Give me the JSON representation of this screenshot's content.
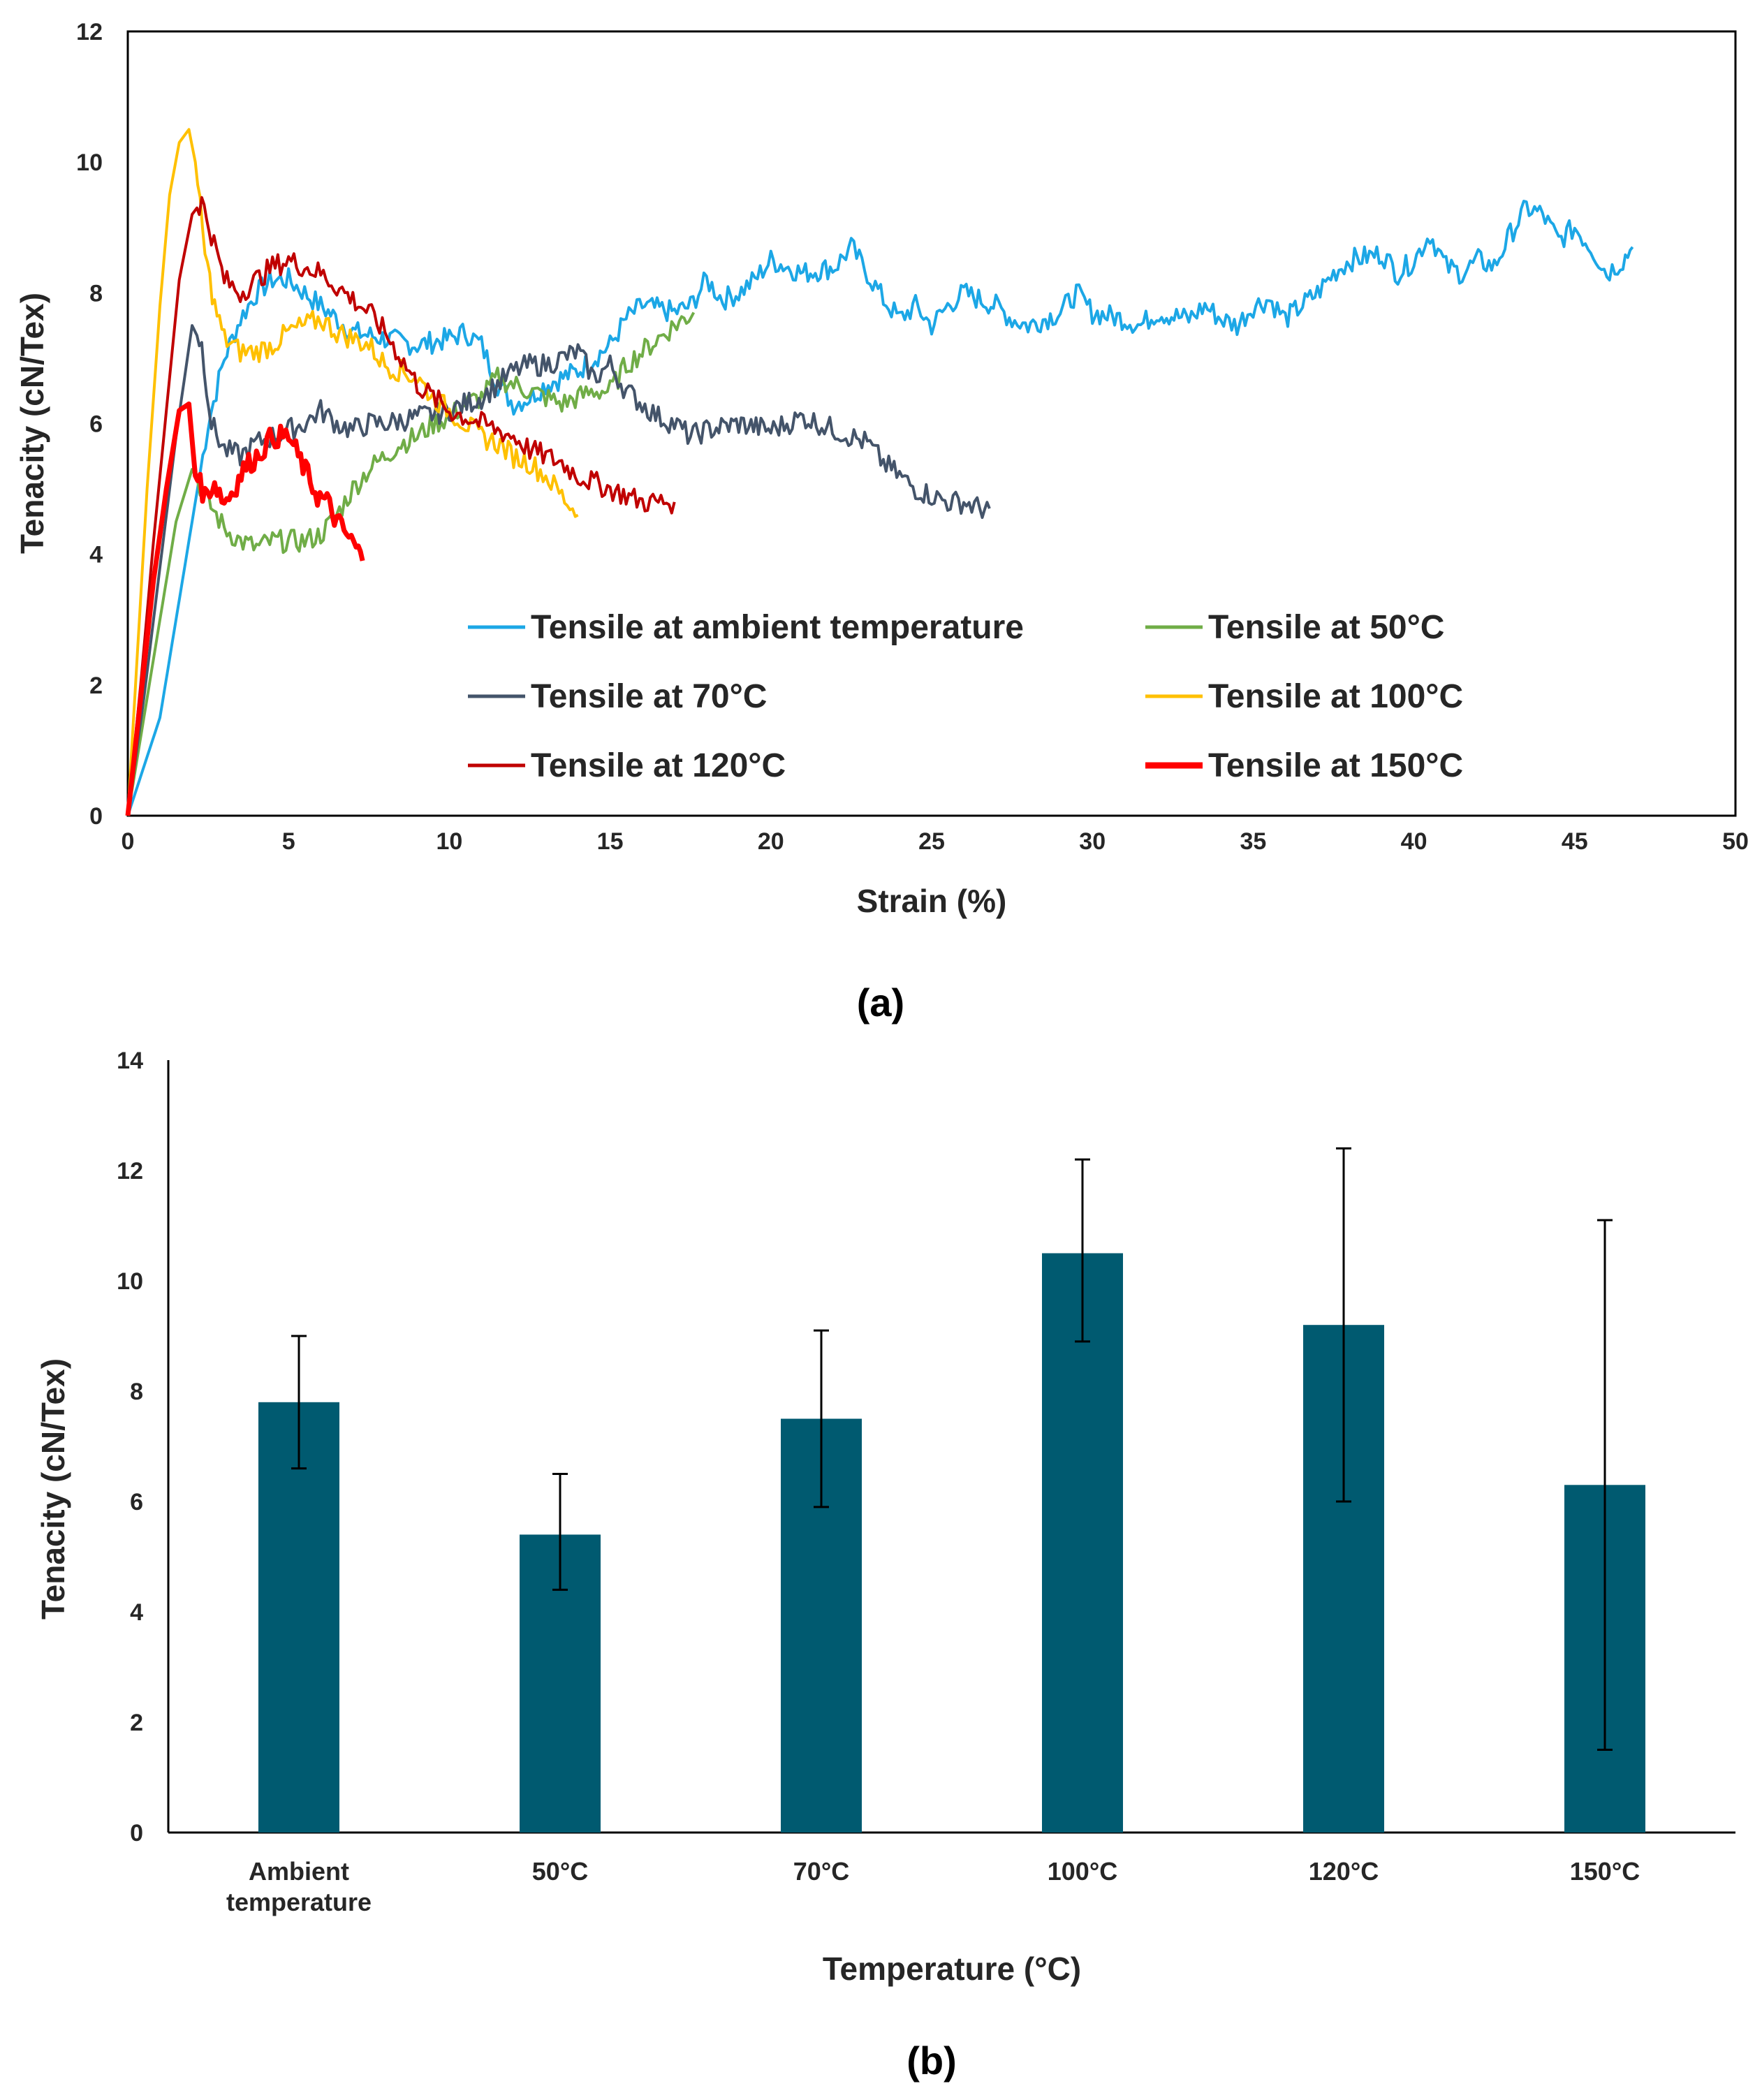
{
  "chart_data": [
    {
      "type": "line",
      "panel": "(a)",
      "xlabel": "Strain (%)",
      "ylabel": "Tenacity (cN/Tex)",
      "xlim": [
        0,
        50
      ],
      "ylim": [
        0,
        12
      ],
      "xticks": [
        "0",
        "5",
        "10",
        "15",
        "20",
        "25",
        "30",
        "35",
        "40",
        "45",
        "50"
      ],
      "yticks": [
        "0",
        "2",
        "4",
        "6",
        "8",
        "10",
        "12"
      ],
      "legend_position": "bottom-center (inside)",
      "series": [
        {
          "name": "Tensile at ambient temperature",
          "color": "#1CA7E6",
          "points": [
            [
              0,
              0
            ],
            [
              1,
              1.5
            ],
            [
              2,
              4.5
            ],
            [
              2.5,
              6.0
            ],
            [
              3,
              7.0
            ],
            [
              3.5,
              7.6
            ],
            [
              4,
              8.0
            ],
            [
              4.5,
              8.2
            ],
            [
              5,
              8.2
            ],
            [
              5.5,
              8.0
            ],
            [
              6,
              7.8
            ],
            [
              7,
              7.4
            ],
            [
              8,
              7.3
            ],
            [
              9,
              7.2
            ],
            [
              10,
              7.3
            ],
            [
              10.5,
              7.4
            ],
            [
              11,
              7.2
            ],
            [
              11.5,
              6.6
            ],
            [
              12,
              6.3
            ],
            [
              12.5,
              6.4
            ],
            [
              13,
              6.6
            ],
            [
              14,
              6.8
            ],
            [
              15,
              7.2
            ],
            [
              15.5,
              7.6
            ],
            [
              16,
              7.8
            ],
            [
              17,
              7.7
            ],
            [
              17.5,
              7.8
            ],
            [
              18,
              8.2
            ],
            [
              18.5,
              7.9
            ],
            [
              19,
              8.0
            ],
            [
              19.5,
              8.2
            ],
            [
              20,
              8.5
            ],
            [
              21,
              8.3
            ],
            [
              22,
              8.4
            ],
            [
              22.5,
              8.7
            ],
            [
              23,
              8.3
            ],
            [
              23.5,
              7.9
            ],
            [
              24,
              7.6
            ],
            [
              24.5,
              7.8
            ],
            [
              25,
              7.5
            ],
            [
              25.5,
              7.8
            ],
            [
              26,
              8.0
            ],
            [
              27,
              7.8
            ],
            [
              27.5,
              7.6
            ],
            [
              28,
              7.5
            ],
            [
              29,
              7.7
            ],
            [
              29.5,
              8.0
            ],
            [
              30,
              7.7
            ],
            [
              31,
              7.6
            ],
            [
              31.5,
              7.5
            ],
            [
              32,
              7.7
            ],
            [
              33,
              7.6
            ],
            [
              33.5,
              7.8
            ],
            [
              34,
              7.6
            ],
            [
              34.5,
              7.5
            ],
            [
              35,
              7.8
            ],
            [
              35.5,
              7.9
            ],
            [
              36,
              7.6
            ],
            [
              37,
              8.0
            ],
            [
              37.5,
              8.3
            ],
            [
              38,
              8.5
            ],
            [
              39,
              8.6
            ],
            [
              39.5,
              8.3
            ],
            [
              40,
              8.5
            ],
            [
              40.5,
              8.9
            ],
            [
              41,
              8.4
            ],
            [
              41.5,
              8.3
            ],
            [
              42,
              8.5
            ],
            [
              42.5,
              8.4
            ],
            [
              43,
              8.9
            ],
            [
              43.5,
              9.3
            ],
            [
              44,
              9.2
            ],
            [
              44.5,
              8.8
            ],
            [
              45,
              9.0
            ],
            [
              45.5,
              8.7
            ],
            [
              46,
              8.3
            ],
            [
              46.5,
              8.5
            ],
            [
              46.8,
              8.7
            ]
          ]
        },
        {
          "name": "Tensile at 50°C",
          "color": "#70AD47",
          "points": [
            [
              0,
              0
            ],
            [
              0.5,
              1.5
            ],
            [
              1,
              3.0
            ],
            [
              1.5,
              4.5
            ],
            [
              2,
              5.3
            ],
            [
              2.5,
              4.8
            ],
            [
              3,
              4.4
            ],
            [
              3.5,
              4.2
            ],
            [
              4,
              4.1
            ],
            [
              4.5,
              4.2
            ],
            [
              5,
              4.2
            ],
            [
              5.5,
              4.2
            ],
            [
              6,
              4.3
            ],
            [
              6.5,
              4.6
            ],
            [
              7,
              5.0
            ],
            [
              7.5,
              5.3
            ],
            [
              8,
              5.5
            ],
            [
              8.5,
              5.7
            ],
            [
              9,
              5.8
            ],
            [
              9.5,
              6.0
            ],
            [
              10,
              6.1
            ],
            [
              10.5,
              6.3
            ],
            [
              11,
              6.4
            ],
            [
              11.5,
              6.7
            ],
            [
              12,
              6.6
            ],
            [
              12.5,
              6.5
            ],
            [
              13,
              6.4
            ],
            [
              13.5,
              6.3
            ],
            [
              14,
              6.4
            ],
            [
              14.5,
              6.5
            ],
            [
              15,
              6.5
            ],
            [
              15.5,
              6.9
            ],
            [
              16,
              7.1
            ],
            [
              16.5,
              7.3
            ],
            [
              17,
              7.5
            ],
            [
              17.6,
              7.7
            ]
          ]
        },
        {
          "name": "Tensile at 70°C",
          "color": "#44546A",
          "points": [
            [
              0,
              0
            ],
            [
              0.5,
              1.8
            ],
            [
              1,
              3.8
            ],
            [
              1.5,
              5.8
            ],
            [
              2,
              7.5
            ],
            [
              2.3,
              7.2
            ],
            [
              2.6,
              6.0
            ],
            [
              3,
              5.6
            ],
            [
              3.5,
              5.5
            ],
            [
              4,
              5.7
            ],
            [
              4.5,
              5.8
            ],
            [
              5,
              5.9
            ],
            [
              5.5,
              6.0
            ],
            [
              6,
              6.2
            ],
            [
              6.5,
              6.0
            ],
            [
              7,
              5.9
            ],
            [
              7.5,
              6.0
            ],
            [
              8,
              6.0
            ],
            [
              9,
              6.1
            ],
            [
              10,
              6.2
            ],
            [
              11,
              6.4
            ],
            [
              11.5,
              6.6
            ],
            [
              12,
              6.8
            ],
            [
              12.5,
              6.9
            ],
            [
              13,
              6.9
            ],
            [
              13.5,
              7.0
            ],
            [
              14,
              7.1
            ],
            [
              14.5,
              6.7
            ],
            [
              15,
              6.9
            ],
            [
              15.5,
              6.5
            ],
            [
              16,
              6.3
            ],
            [
              16.5,
              6.1
            ],
            [
              17,
              6.0
            ],
            [
              17.5,
              5.8
            ],
            [
              18,
              5.9
            ],
            [
              19,
              6.0
            ],
            [
              20,
              5.9
            ],
            [
              20.5,
              6.0
            ],
            [
              21,
              6.1
            ],
            [
              21.5,
              6.0
            ],
            [
              22,
              5.9
            ],
            [
              22.5,
              5.8
            ],
            [
              23,
              5.7
            ],
            [
              23.5,
              5.4
            ],
            [
              24,
              5.2
            ],
            [
              24.5,
              5.0
            ],
            [
              25,
              4.9
            ],
            [
              25.5,
              4.8
            ],
            [
              26,
              4.8
            ],
            [
              26.5,
              4.7
            ],
            [
              26.8,
              4.7
            ]
          ]
        },
        {
          "name": "Tensile at 100°C",
          "color": "#FFC000",
          "points": [
            [
              0,
              0
            ],
            [
              0.3,
              2.5
            ],
            [
              0.6,
              5.0
            ],
            [
              1,
              7.8
            ],
            [
              1.3,
              9.5
            ],
            [
              1.6,
              10.3
            ],
            [
              1.9,
              10.5
            ],
            [
              2.1,
              10.0
            ],
            [
              2.4,
              8.6
            ],
            [
              2.7,
              7.8
            ],
            [
              3,
              7.3
            ],
            [
              3.5,
              7.1
            ],
            [
              4,
              7.1
            ],
            [
              4.5,
              7.2
            ],
            [
              5,
              7.4
            ],
            [
              5.5,
              7.5
            ],
            [
              6,
              7.6
            ],
            [
              6.5,
              7.4
            ],
            [
              7,
              7.3
            ],
            [
              7.5,
              7.2
            ],
            [
              8,
              6.9
            ],
            [
              8.5,
              6.8
            ],
            [
              9,
              6.7
            ],
            [
              9.5,
              6.4
            ],
            [
              10,
              6.2
            ],
            [
              10.5,
              6.0
            ],
            [
              11,
              5.8
            ],
            [
              11.5,
              5.7
            ],
            [
              12,
              5.5
            ],
            [
              12.5,
              5.4
            ],
            [
              13,
              5.2
            ],
            [
              13.5,
              4.9
            ],
            [
              14,
              4.6
            ]
          ]
        },
        {
          "name": "Tensile at 120°C",
          "color": "#C00000",
          "points": [
            [
              0,
              0
            ],
            [
              0.4,
              2.0
            ],
            [
              0.8,
              4.2
            ],
            [
              1.2,
              6.2
            ],
            [
              1.6,
              8.2
            ],
            [
              2,
              9.2
            ],
            [
              2.3,
              9.4
            ],
            [
              2.6,
              8.9
            ],
            [
              3,
              8.2
            ],
            [
              3.5,
              8.0
            ],
            [
              4,
              8.2
            ],
            [
              4.5,
              8.4
            ],
            [
              5,
              8.5
            ],
            [
              5.5,
              8.4
            ],
            [
              6,
              8.3
            ],
            [
              6.5,
              8.1
            ],
            [
              7,
              7.9
            ],
            [
              7.5,
              7.7
            ],
            [
              8,
              7.4
            ],
            [
              8.5,
              7.0
            ],
            [
              9,
              6.6
            ],
            [
              9.5,
              6.4
            ],
            [
              10,
              6.2
            ],
            [
              10.5,
              6.1
            ],
            [
              11,
              6.0
            ],
            [
              11.5,
              5.9
            ],
            [
              12,
              5.8
            ],
            [
              12.5,
              5.6
            ],
            [
              13,
              5.5
            ],
            [
              13.5,
              5.4
            ],
            [
              14,
              5.2
            ],
            [
              14.5,
              5.1
            ],
            [
              15,
              5.0
            ],
            [
              15.5,
              4.9
            ],
            [
              16,
              4.8
            ],
            [
              16.5,
              4.8
            ],
            [
              17,
              4.8
            ]
          ]
        },
        {
          "name": "Tensile at 150°C",
          "color": "#FF0000",
          "points": [
            [
              0,
              0
            ],
            [
              0.4,
              1.8
            ],
            [
              0.8,
              3.6
            ],
            [
              1.2,
              5.0
            ],
            [
              1.6,
              6.2
            ],
            [
              1.9,
              6.3
            ],
            [
              2.1,
              5.2
            ],
            [
              2.4,
              4.9
            ],
            [
              2.7,
              5.1
            ],
            [
              3,
              4.8
            ],
            [
              3.3,
              5.0
            ],
            [
              3.6,
              5.3
            ],
            [
              4,
              5.5
            ],
            [
              4.5,
              5.8
            ],
            [
              5,
              5.8
            ],
            [
              5.3,
              5.5
            ],
            [
              5.6,
              5.2
            ],
            [
              5.9,
              4.9
            ],
            [
              6.2,
              4.8
            ],
            [
              6.5,
              4.5
            ],
            [
              6.8,
              4.3
            ],
            [
              7.1,
              4.1
            ],
            [
              7.3,
              3.9
            ]
          ]
        }
      ]
    },
    {
      "type": "bar",
      "panel": "(b)",
      "xlabel": "Temperature (°C)",
      "ylabel": "Tenacity (cN/Tex)",
      "ylim": [
        0,
        14
      ],
      "yticks": [
        "0",
        "2",
        "4",
        "6",
        "8",
        "10",
        "12",
        "14"
      ],
      "bar_color": "#005A70",
      "categories": [
        [
          "Ambient",
          "temperature"
        ],
        [
          "50°C"
        ],
        [
          "70°C"
        ],
        [
          "100°C"
        ],
        [
          "120°C"
        ],
        [
          "150°C"
        ]
      ],
      "values": [
        7.8,
        5.4,
        7.5,
        10.5,
        9.2,
        6.3
      ],
      "error_low": [
        6.6,
        4.4,
        5.9,
        8.9,
        6.0,
        1.5
      ],
      "error_high": [
        9.0,
        6.5,
        9.1,
        12.2,
        12.4,
        11.1
      ]
    }
  ],
  "panel_labels": {
    "a": "(a)",
    "b": "(b)"
  }
}
